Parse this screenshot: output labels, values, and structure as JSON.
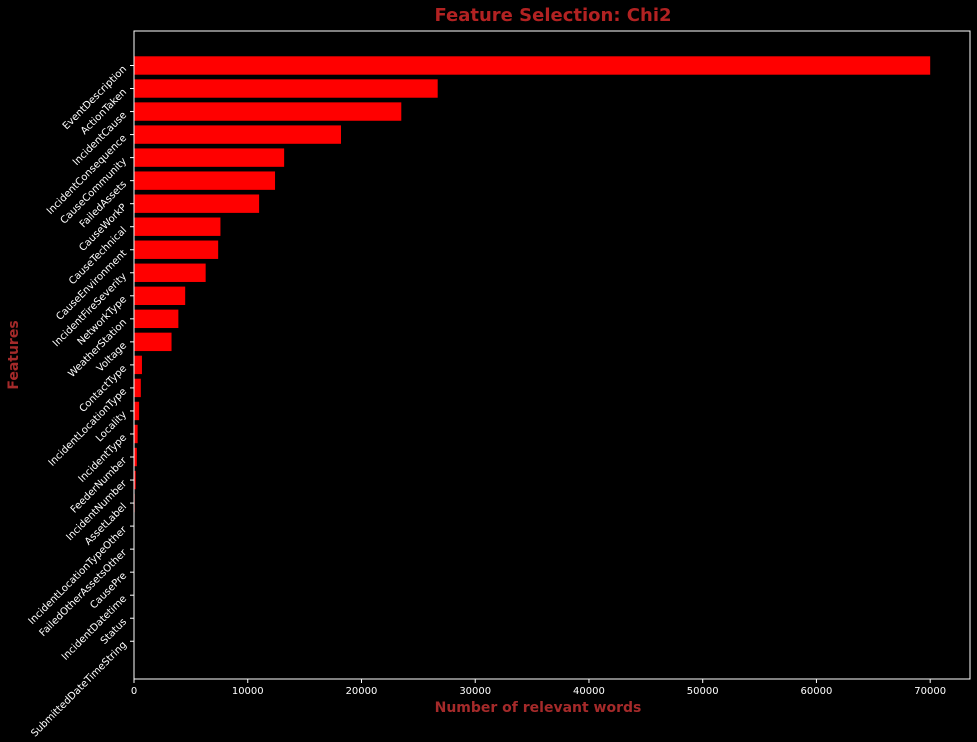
{
  "chart_data": {
    "type": "bar",
    "orientation": "horizontal",
    "title": "Feature Selection: Chi2",
    "xlabel": "Number of relevant words",
    "ylabel": "Features",
    "xlim": [
      0,
      73500
    ],
    "xticks": [
      0,
      10000,
      20000,
      30000,
      40000,
      50000,
      60000,
      70000
    ],
    "categories": [
      "EventDescription",
      "ActionTaken",
      "IncidentCause",
      "IncidentConsequence",
      "CauseCommunity",
      "FailedAssets",
      "CauseWorkP",
      "CauseTechnical",
      "CauseEnvironment",
      "IncidentFireSeverity",
      "NetworkType",
      "WeatherStation",
      "Voltage",
      "ContactType",
      "IncidentLocationType",
      "Locality",
      "IncidentType",
      "FeederNumber",
      "IncidentNumber",
      "AssetLabel",
      "IncidentLocationTypeOther",
      "FailedOtherAssetsOther",
      "CausePre",
      "IncidentDatetime",
      "Status",
      "SubmittedDateTimeString"
    ],
    "values": [
      70000,
      26700,
      23500,
      18200,
      13200,
      12400,
      11000,
      7600,
      7400,
      6300,
      4500,
      3900,
      3300,
      700,
      600,
      450,
      320,
      250,
      150,
      60,
      40,
      30,
      20,
      15,
      10,
      5
    ],
    "grid": false,
    "legend": "none"
  },
  "colors": {
    "background": "#000000",
    "bar": "#ff0000",
    "title": "#b22222",
    "axis_label": "#a52a2a",
    "tick": "#ffffff",
    "spine": "#ffffff"
  }
}
